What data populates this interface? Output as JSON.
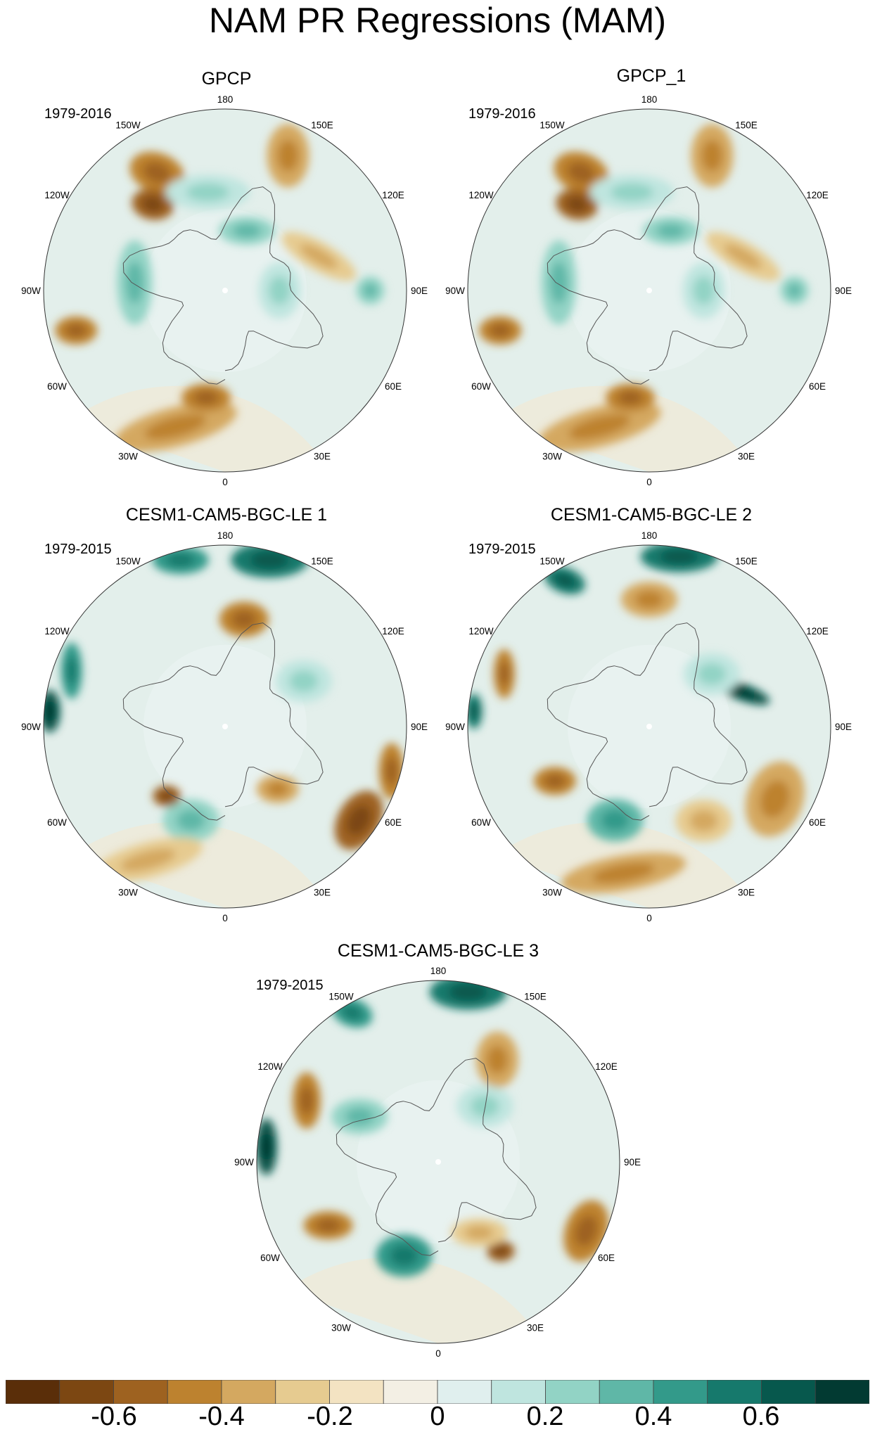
{
  "title": "NAM PR Regressions (MAM)",
  "panels": [
    {
      "id": "p1",
      "title": "GPCP",
      "years": "1979-2016"
    },
    {
      "id": "p2",
      "title": "GPCP_1",
      "years": "1979-2016"
    },
    {
      "id": "p3",
      "title": "CESM1-CAM5-BGC-LE 1",
      "years": "1979-2015"
    },
    {
      "id": "p4",
      "title": "CESM1-CAM5-BGC-LE 2",
      "years": "1979-2015"
    },
    {
      "id": "p5",
      "title": "CESM1-CAM5-BGC-LE 3",
      "years": "1979-2015"
    }
  ],
  "longitude_labels": [
    "180",
    "150E",
    "120E",
    "90E",
    "60E",
    "30E",
    "0",
    "30W",
    "60W",
    "90W",
    "120W",
    "150W"
  ],
  "colorbar": {
    "colors": [
      "#5a2e09",
      "#7c4712",
      "#9e6220",
      "#bd822f",
      "#d4a860",
      "#e6cb90",
      "#f3e3c2",
      "#f3efe4",
      "#e0efee",
      "#bfe5df",
      "#92d3c5",
      "#5fb7a7",
      "#339a8a",
      "#16796c",
      "#07584d",
      "#023a32"
    ],
    "tick_labels": [
      "-0.6",
      "-0.4",
      "-0.2",
      "0",
      "0.2",
      "0.4",
      "0.6"
    ]
  }
}
